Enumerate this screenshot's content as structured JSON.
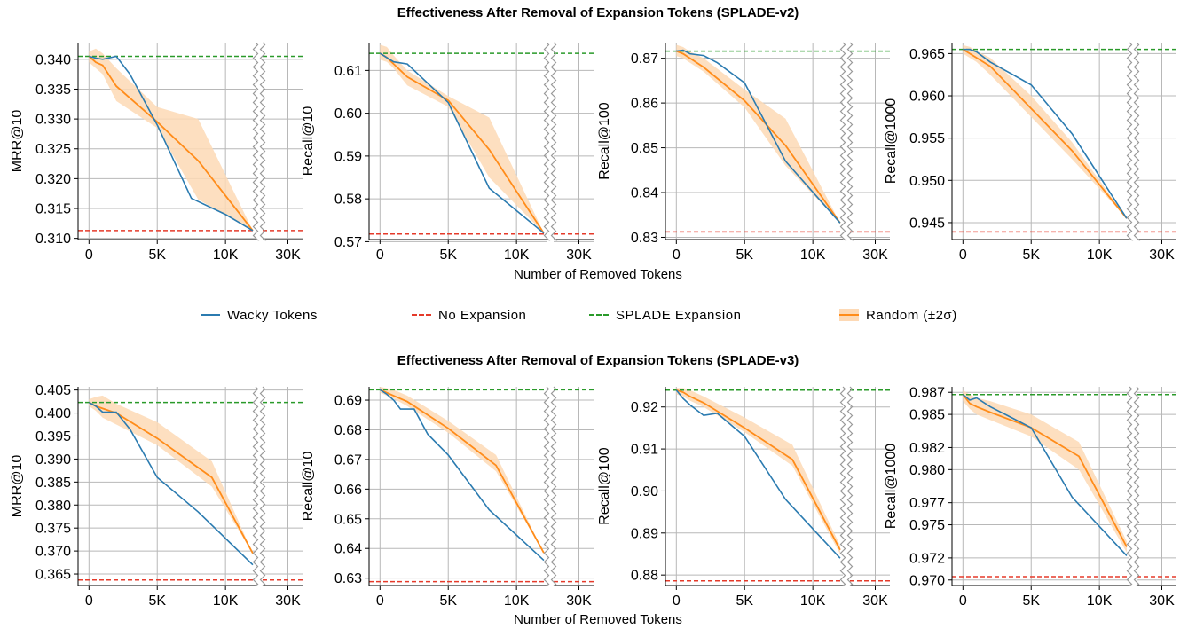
{
  "figure": {
    "xlabel": "Number of Removed Tokens",
    "legend": {
      "wacky": "Wacky Tokens",
      "noexp": "No Expansion",
      "splade": "SPLADE Expansion",
      "random": "Random (±2σ)"
    },
    "colors": {
      "wacky": "#2b7bb0",
      "random": "#ff8c1a",
      "band": "#fdd9b5",
      "noexp": "#e53a2a",
      "splade": "#2a9a2a",
      "grid": "#b8b8b8"
    }
  },
  "chart_data": [
    {
      "type": "line",
      "group_title": "Effectiveness After Removal of Expansion Tokens (SPLADE-v2)",
      "panels": [
        {
          "ylabel": "MRR@10",
          "ylim": [
            0.3098,
            0.3428
          ],
          "yticks": [
            "0.310",
            "0.315",
            "0.320",
            "0.325",
            "0.330",
            "0.335",
            "0.340"
          ],
          "no_expansion": 0.3113,
          "splade_expansion": 0.3405,
          "wacky": {
            "x": [
              0,
              500,
              1000,
              2000,
              3000,
              5000,
              7500,
              10000,
              12000
            ],
            "y": [
              0.3405,
              0.3402,
              0.34,
              0.3405,
              0.3375,
              0.329,
              0.3167,
              0.314,
              0.3113
            ]
          },
          "random": {
            "x": [
              0,
              500,
              1000,
              2000,
              5000,
              8000,
              12000
            ],
            "y": [
              0.3405,
              0.3395,
              0.339,
              0.3355,
              0.3295,
              0.323,
              0.3113
            ],
            "lower": [
              0.3395,
              0.3385,
              0.3375,
              0.333,
              0.3285,
              0.3165,
              0.3113
            ],
            "upper": [
              0.3413,
              0.3418,
              0.341,
              0.3385,
              0.332,
              0.33,
              0.3113
            ]
          }
        },
        {
          "ylabel": "Recall@10",
          "ylim": [
            0.5705,
            0.6165
          ],
          "yticks": [
            "0.57",
            "0.58",
            "0.59",
            "0.60",
            "0.61"
          ],
          "no_expansion": 0.5718,
          "splade_expansion": 0.614,
          "wacky": {
            "x": [
              0,
              500,
              1000,
              2000,
              5000,
              8000,
              12000
            ],
            "y": [
              0.614,
              0.613,
              0.612,
              0.6115,
              0.6025,
              0.5825,
              0.572
            ]
          },
          "random": {
            "x": [
              0,
              500,
              1000,
              2000,
              5000,
              8000,
              12000
            ],
            "y": [
              0.614,
              0.613,
              0.6115,
              0.6085,
              0.603,
              0.5915,
              0.572
            ],
            "lower": [
              0.6125,
              0.612,
              0.6105,
              0.6065,
              0.6015,
              0.585,
              0.572
            ],
            "upper": [
              0.616,
              0.6155,
              0.6135,
              0.61,
              0.604,
              0.599,
              0.572
            ]
          }
        },
        {
          "ylabel": "Recall@100",
          "ylim": [
            0.8295,
            0.8735
          ],
          "yticks": [
            "0.83",
            "0.84",
            "0.85",
            "0.86",
            "0.87"
          ],
          "no_expansion": 0.8312,
          "splade_expansion": 0.8716,
          "wacky": {
            "x": [
              0,
              500,
              1000,
              2000,
              3000,
              5000,
              8000,
              12000
            ],
            "y": [
              0.8716,
              0.8718,
              0.871,
              0.8706,
              0.869,
              0.8645,
              0.847,
              0.8332
            ]
          },
          "random": {
            "x": [
              0,
              500,
              1000,
              2000,
              5000,
              8000,
              12000
            ],
            "y": [
              0.8716,
              0.871,
              0.87,
              0.868,
              0.8605,
              0.8505,
              0.8332
            ],
            "lower": [
              0.8705,
              0.87,
              0.869,
              0.867,
              0.859,
              0.846,
              0.8332
            ],
            "upper": [
              0.873,
              0.8725,
              0.8715,
              0.87,
              0.863,
              0.8565,
              0.8332
            ]
          }
        },
        {
          "ylabel": "Recall@1000",
          "ylim": [
            0.943,
            0.9663
          ],
          "yticks": [
            "0.945",
            "0.950",
            "0.955",
            "0.960",
            "0.965"
          ],
          "no_expansion": 0.9439,
          "splade_expansion": 0.9655,
          "wacky": {
            "x": [
              0,
              500,
              1000,
              2000,
              5000,
              8000,
              12000
            ],
            "y": [
              0.9655,
              0.9655,
              0.9652,
              0.964,
              0.9613,
              0.9555,
              0.9455
            ]
          },
          "random": {
            "x": [
              0,
              500,
              1000,
              2000,
              5000,
              8000,
              12000
            ],
            "y": [
              0.9655,
              0.965,
              0.9645,
              0.9635,
              0.9585,
              0.9535,
              0.9455
            ],
            "lower": [
              0.965,
              0.9645,
              0.964,
              0.9625,
              0.9575,
              0.9525,
              0.9455
            ],
            "upper": [
              0.966,
              0.9658,
              0.9653,
              0.9645,
              0.96,
              0.9545,
              0.9455
            ]
          }
        }
      ]
    },
    {
      "type": "line",
      "group_title": "Effectiveness After Removal of Expansion Tokens (SPLADE-v3)",
      "panels": [
        {
          "ylabel": "MRR@10",
          "ylim": [
            0.3625,
            0.4057
          ],
          "yticks": [
            "0.365",
            "0.370",
            "0.375",
            "0.380",
            "0.385",
            "0.390",
            "0.395",
            "0.400",
            "0.405"
          ],
          "no_expansion": 0.3637,
          "splade_expansion": 0.4023,
          "wacky": {
            "x": [
              0,
              500,
              1000,
              2000,
              3000,
              5000,
              8000,
              12000
            ],
            "y": [
              0.4023,
              0.4015,
              0.4002,
              0.4002,
              0.3965,
              0.386,
              0.3785,
              0.367
            ]
          },
          "random": {
            "x": [
              0,
              500,
              1000,
              2000,
              5000,
              9000,
              12000
            ],
            "y": [
              0.4023,
              0.4015,
              0.401,
              0.4,
              0.3945,
              0.386,
              0.3695
            ],
            "lower": [
              0.4015,
              0.4005,
              0.399,
              0.3975,
              0.393,
              0.384,
              0.3695
            ],
            "upper": [
              0.403,
              0.4035,
              0.4038,
              0.402,
              0.398,
              0.3895,
              0.3695
            ]
          }
        },
        {
          "ylabel": "Recall@10",
          "ylim": [
            0.6275,
            0.6945
          ],
          "yticks": [
            "0.63",
            "0.64",
            "0.65",
            "0.66",
            "0.67",
            "0.68",
            "0.69"
          ],
          "no_expansion": 0.6288,
          "splade_expansion": 0.6935,
          "wacky": {
            "x": [
              0,
              500,
              1000,
              1500,
              2500,
              3500,
              5000,
              8000,
              12000
            ],
            "y": [
              0.6935,
              0.692,
              0.69,
              0.687,
              0.687,
              0.6785,
              0.6715,
              0.653,
              0.636
            ]
          },
          "random": {
            "x": [
              0,
              500,
              1000,
              2000,
              5000,
              8500,
              12000
            ],
            "y": [
              0.6935,
              0.6925,
              0.6915,
              0.6895,
              0.6805,
              0.668,
              0.6385
            ],
            "lower": [
              0.6925,
              0.6915,
              0.6905,
              0.688,
              0.679,
              0.666,
              0.6385
            ],
            "upper": [
              0.6945,
              0.694,
              0.6935,
              0.6915,
              0.683,
              0.6715,
              0.6385
            ]
          }
        },
        {
          "ylabel": "Recall@100",
          "ylim": [
            0.8775,
            0.9248
          ],
          "yticks": [
            "0.88",
            "0.89",
            "0.90",
            "0.91",
            "0.92"
          ],
          "no_expansion": 0.8786,
          "splade_expansion": 0.924,
          "wacky": {
            "x": [
              0,
              500,
              1000,
              2000,
              3000,
              5000,
              8000,
              12000
            ],
            "y": [
              0.924,
              0.922,
              0.9205,
              0.918,
              0.9185,
              0.913,
              0.898,
              0.884
            ]
          },
          "random": {
            "x": [
              0,
              500,
              1000,
              2000,
              5000,
              8500,
              12000
            ],
            "y": [
              0.924,
              0.9235,
              0.9225,
              0.921,
              0.915,
              0.9075,
              0.886
            ],
            "lower": [
              0.923,
              0.9225,
              0.9215,
              0.92,
              0.914,
              0.906,
              0.885
            ],
            "upper": [
              0.9245,
              0.9245,
              0.924,
              0.9225,
              0.9175,
              0.911,
              0.887
            ]
          }
        },
        {
          "ylabel": "Recall@1000",
          "ylim": [
            0.9695,
            0.9875
          ],
          "yticks": [
            "0.970",
            "0.972",
            "0.975",
            "0.977",
            "0.980",
            "0.982",
            "0.985",
            "0.987"
          ],
          "no_expansion": 0.9703,
          "splade_expansion": 0.9868,
          "wacky": {
            "x": [
              0,
              500,
              1000,
              2000,
              5000,
              8000,
              12000
            ],
            "y": [
              0.9868,
              0.9863,
              0.9865,
              0.9857,
              0.9838,
              0.9775,
              0.9722
            ]
          },
          "random": {
            "x": [
              0,
              500,
              1000,
              2000,
              5000,
              8500,
              12000
            ],
            "y": [
              0.9868,
              0.986,
              0.9857,
              0.9852,
              0.9838,
              0.9812,
              0.973
            ],
            "lower": [
              0.9862,
              0.9855,
              0.985,
              0.9845,
              0.983,
              0.98,
              0.9725
            ],
            "upper": [
              0.9872,
              0.9868,
              0.9865,
              0.9862,
              0.985,
              0.9825,
              0.9735
            ]
          }
        }
      ]
    }
  ]
}
